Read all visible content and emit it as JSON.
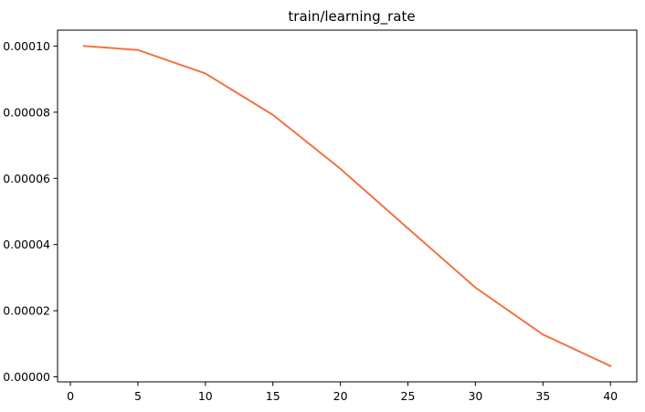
{
  "chart_data": {
    "type": "line",
    "title": "train/learning_rate",
    "xlabel": "",
    "ylabel": "",
    "xlim": [
      -0.95,
      41.95
    ],
    "ylim": [
      -1.5e-06,
      0.0001048
    ],
    "xticks": [
      0,
      5,
      10,
      15,
      20,
      25,
      30,
      35,
      40
    ],
    "xtick_labels": [
      "0",
      "5",
      "10",
      "15",
      "20",
      "25",
      "30",
      "35",
      "40"
    ],
    "yticks": [
      0,
      2e-05,
      4e-05,
      6e-05,
      8e-05,
      0.0001
    ],
    "ytick_labels": [
      "0.00000",
      "0.00002",
      "0.00004",
      "0.00006",
      "0.00008",
      "0.00010"
    ],
    "grid": false,
    "series": [
      {
        "color": "#f27242",
        "x": [
          1,
          5,
          10,
          15,
          20,
          25,
          30,
          35,
          40
        ],
        "values": [
          0.0001,
          9.88e-05,
          9.17e-05,
          7.92e-05,
          6.29e-05,
          4.49e-05,
          2.7e-05,
          1.28e-05,
          3.3e-06
        ]
      }
    ]
  }
}
